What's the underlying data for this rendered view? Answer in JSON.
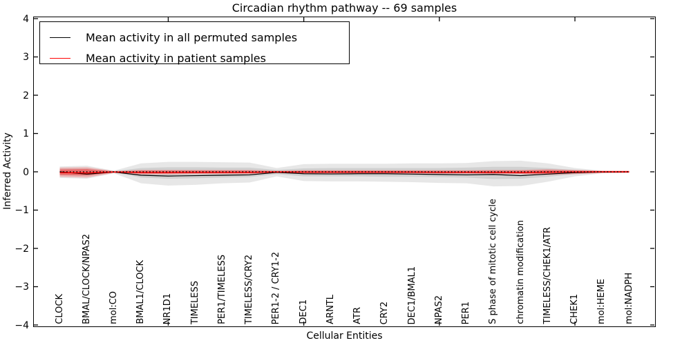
{
  "chart_data": {
    "type": "line",
    "title": "Circadian rhythm pathway -- 69 samples",
    "xlabel": "Cellular Entities",
    "ylabel": "Inferred Activity",
    "ylim": [
      -4,
      4
    ],
    "yticks": [
      "4",
      "3",
      "2",
      "1",
      "0",
      "−1",
      "−2",
      "−3",
      "−4"
    ],
    "ytick_values": [
      4,
      3,
      2,
      1,
      0,
      -1,
      -2,
      -3,
      -4
    ],
    "xtick_category_indices": [
      4,
      9,
      14,
      19
    ],
    "grid": false,
    "legend_position": "upper left",
    "categories": [
      "CLOCK",
      "BMAL/CLOCK/NPAS2",
      "mol:CO",
      "BMAL1/CLOCK",
      "NR1D1",
      "TIMELESS",
      "PER1/TIMELESS",
      "TIMELESS/CRY2",
      "PER1-2 / CRY1-2",
      "DEC1",
      "ARNTL",
      "ATR",
      "CRY2",
      "DEC1/BMAL1",
      "NPAS2",
      "PER1",
      "S phase of mitotic cell cycle",
      "chromatin modification",
      "TIMELESS/CHEK1/ATR",
      "CHEK1",
      "mol:HEME",
      "mol:NADPH"
    ],
    "legend": [
      {
        "label": "Mean activity in all permuted samples",
        "color": "#000000"
      },
      {
        "label": "Mean activity in patient samples",
        "color": "#ff0000"
      }
    ],
    "series": [
      {
        "name": "mean-permuted",
        "color": "#000000",
        "width": 1.2,
        "dash": "",
        "values": [
          0.0,
          -0.06,
          -0.005,
          -0.09,
          -0.11,
          -0.1,
          -0.09,
          -0.08,
          -0.015,
          -0.05,
          -0.055,
          -0.05,
          -0.05,
          -0.06,
          -0.07,
          -0.08,
          -0.07,
          -0.1,
          -0.06,
          -0.02,
          -0.005,
          0.0
        ]
      },
      {
        "name": "mean-patient",
        "color": "#ff0000",
        "width": 1.5,
        "dash": "",
        "values": [
          -0.02,
          -0.03,
          -0.005,
          -0.02,
          -0.02,
          -0.015,
          -0.015,
          -0.015,
          -0.005,
          -0.01,
          -0.01,
          -0.01,
          -0.01,
          -0.01,
          -0.015,
          -0.015,
          -0.015,
          -0.02,
          -0.01,
          -0.005,
          0.0,
          0.0
        ]
      },
      {
        "name": "zero-baseline",
        "color": "#000000",
        "width": 1.6,
        "dash": "1.6,3.2",
        "values": [
          0,
          0,
          0,
          0,
          0,
          0,
          0,
          0,
          0,
          0,
          0,
          0,
          0,
          0,
          0,
          0,
          0,
          0,
          0,
          0,
          0,
          0
        ]
      }
    ],
    "bands": [
      {
        "name": "permuted-range-outer",
        "color": "#b0b0b0",
        "opacity": 0.3,
        "upper": [
          0.14,
          0.16,
          0.03,
          0.22,
          0.26,
          0.26,
          0.25,
          0.24,
          0.1,
          0.2,
          0.21,
          0.21,
          0.21,
          0.22,
          0.22,
          0.23,
          0.28,
          0.29,
          0.22,
          0.1,
          0.03,
          0.02
        ],
        "lower": [
          -0.16,
          -0.18,
          -0.04,
          -0.3,
          -0.36,
          -0.34,
          -0.3,
          -0.28,
          -0.12,
          -0.24,
          -0.25,
          -0.25,
          -0.26,
          -0.27,
          -0.29,
          -0.3,
          -0.38,
          -0.37,
          -0.26,
          -0.12,
          -0.04,
          -0.02
        ]
      },
      {
        "name": "permuted-range-inner",
        "color": "#a0a0a0",
        "opacity": 0.3,
        "upper": [
          0.08,
          0.09,
          0.015,
          0.1,
          0.12,
          0.12,
          0.11,
          0.11,
          0.05,
          0.09,
          0.1,
          0.1,
          0.1,
          0.1,
          0.1,
          0.11,
          0.13,
          0.13,
          0.1,
          0.05,
          0.015,
          0.01
        ],
        "lower": [
          -0.09,
          -0.11,
          -0.02,
          -0.15,
          -0.18,
          -0.17,
          -0.15,
          -0.14,
          -0.06,
          -0.12,
          -0.12,
          -0.12,
          -0.13,
          -0.13,
          -0.14,
          -0.15,
          -0.19,
          -0.18,
          -0.13,
          -0.06,
          -0.02,
          -0.01
        ]
      },
      {
        "name": "patient-range-outer",
        "color": "#ff2222",
        "opacity": 0.25,
        "upper": [
          0.11,
          0.12,
          0.02,
          0.05,
          0.05,
          0.05,
          0.05,
          0.05,
          0.03,
          0.04,
          0.04,
          0.04,
          0.04,
          0.04,
          0.04,
          0.04,
          0.05,
          0.05,
          0.07,
          0.05,
          0.03,
          0.03
        ],
        "lower": [
          -0.13,
          -0.15,
          -0.03,
          -0.07,
          -0.07,
          -0.06,
          -0.06,
          -0.06,
          -0.035,
          -0.05,
          -0.05,
          -0.05,
          -0.05,
          -0.05,
          -0.05,
          -0.05,
          -0.06,
          -0.06,
          -0.08,
          -0.06,
          -0.035,
          -0.03
        ]
      },
      {
        "name": "patient-range-inner",
        "color": "#ff0000",
        "opacity": 0.35,
        "upper": [
          0.06,
          0.07,
          0.01,
          0.03,
          0.03,
          0.03,
          0.03,
          0.03,
          0.015,
          0.025,
          0.025,
          0.025,
          0.025,
          0.025,
          0.025,
          0.025,
          0.03,
          0.03,
          0.04,
          0.03,
          0.02,
          0.02
        ],
        "lower": [
          -0.08,
          -0.09,
          -0.015,
          -0.04,
          -0.04,
          -0.035,
          -0.035,
          -0.035,
          -0.02,
          -0.03,
          -0.03,
          -0.03,
          -0.03,
          -0.03,
          -0.03,
          -0.03,
          -0.035,
          -0.04,
          -0.05,
          -0.035,
          -0.02,
          -0.02
        ]
      }
    ]
  }
}
